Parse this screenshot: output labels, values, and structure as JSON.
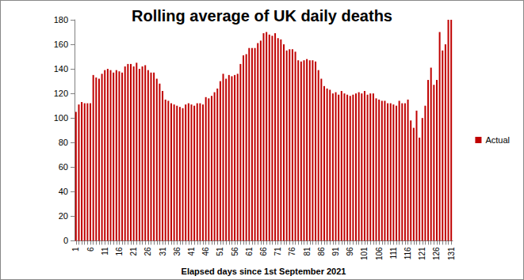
{
  "chart_data": {
    "type": "bar",
    "title": "Rolling average of UK daily deaths",
    "x_label": "Elapsed days since 1st September 2021",
    "categories": [
      "1",
      null,
      null,
      null,
      null,
      "6",
      null,
      null,
      null,
      null,
      "11",
      null,
      null,
      null,
      null,
      "16",
      null,
      null,
      null,
      null,
      "21",
      null,
      null,
      null,
      null,
      "26",
      null,
      null,
      null,
      null,
      "31",
      null,
      null,
      null,
      null,
      "36",
      null,
      null,
      null,
      null,
      "41",
      null,
      null,
      null,
      null,
      "46",
      null,
      null,
      null,
      null,
      "51",
      null,
      null,
      null,
      null,
      "56",
      null,
      null,
      null,
      null,
      "61",
      null,
      null,
      null,
      null,
      "66",
      null,
      null,
      null,
      null,
      "71",
      null,
      null,
      null,
      null,
      "76",
      null,
      null,
      null,
      null,
      "81",
      null,
      null,
      null,
      null,
      "86",
      null,
      null,
      null,
      null,
      "91",
      null,
      null,
      null,
      null,
      "96",
      null,
      null,
      null,
      null,
      "101",
      null,
      null,
      null,
      null,
      "106",
      null,
      null,
      null,
      null,
      "111",
      null,
      null,
      null,
      null,
      "116",
      null,
      null,
      null,
      null,
      "121",
      null,
      null,
      null,
      null,
      "126",
      null,
      null,
      null,
      null,
      "131"
    ],
    "series": [
      {
        "name": "Actual",
        "color": "#c00000",
        "values": [
          105,
          111,
          113,
          112,
          112,
          112,
          135,
          133,
          132,
          136,
          139,
          140,
          139,
          137,
          139,
          138,
          137,
          142,
          144,
          144,
          142,
          145,
          140,
          142,
          143,
          139,
          137,
          137,
          132,
          128,
          122,
          115,
          114,
          112,
          111,
          110,
          109,
          108,
          111,
          112,
          111,
          110,
          112,
          112,
          111,
          117,
          116,
          118,
          121,
          124,
          130,
          136,
          132,
          135,
          134,
          135,
          136,
          144,
          151,
          152,
          157,
          157,
          157,
          161,
          163,
          169,
          170,
          168,
          167,
          169,
          165,
          164,
          160,
          155,
          156,
          156,
          154,
          147,
          146,
          147,
          148,
          147,
          147,
          146,
          139,
          132,
          126,
          124,
          123,
          120,
          121,
          119,
          122,
          120,
          119,
          118,
          119,
          120,
          121,
          120,
          122,
          119,
          120,
          120,
          116,
          115,
          114,
          114,
          112,
          112,
          111,
          110,
          114,
          112,
          112,
          115,
          98,
          92,
          106,
          84,
          100,
          110,
          131,
          141,
          127,
          131,
          170,
          155,
          160,
          180,
          180
        ]
      }
    ],
    "ylim": [
      0,
      180
    ],
    "yticks": [
      0,
      20,
      40,
      60,
      80,
      100,
      120,
      140,
      160,
      180
    ],
    "grid": false,
    "legend": "right"
  }
}
